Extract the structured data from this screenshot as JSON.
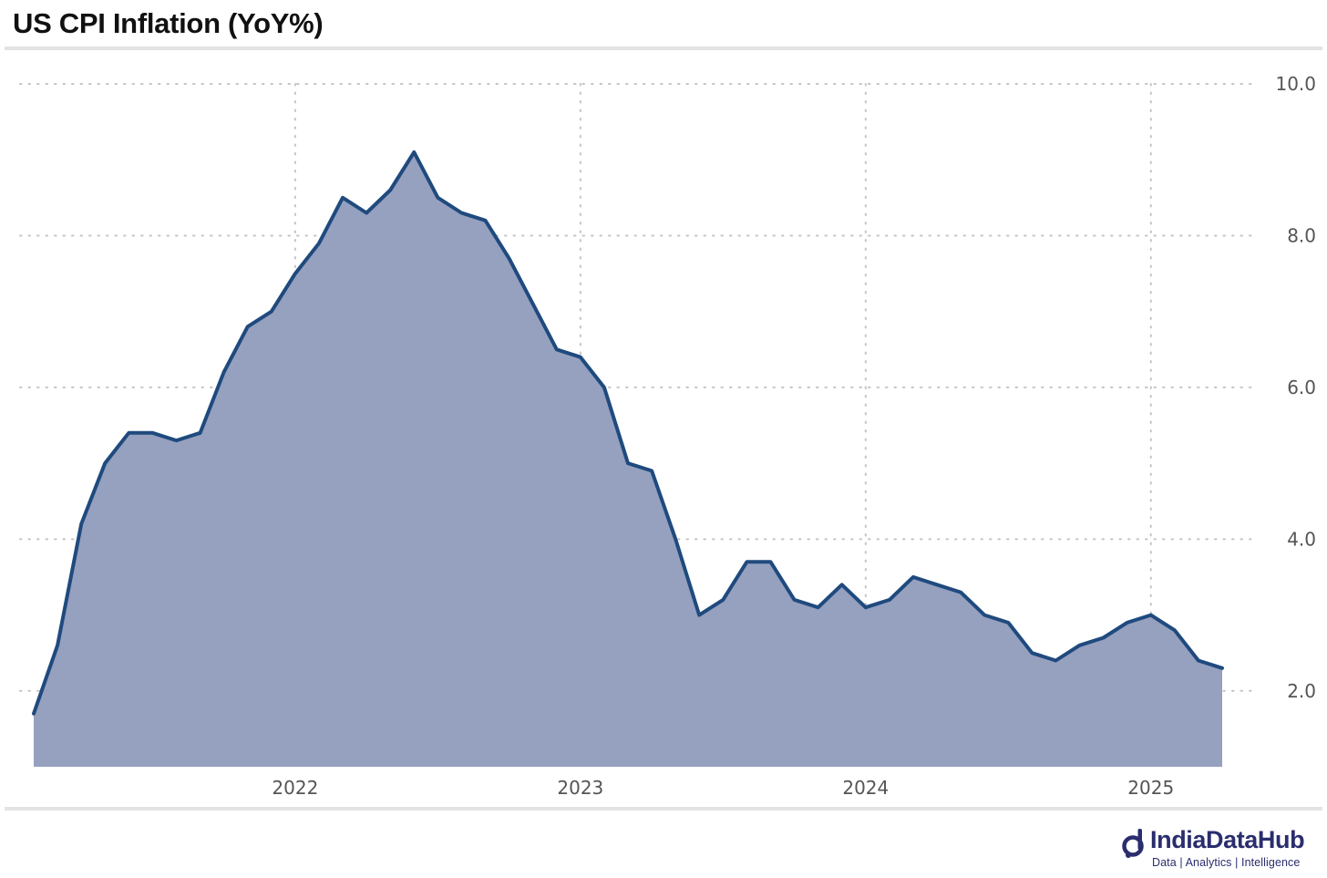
{
  "header": {
    "title": "US CPI Inflation (YoY%)"
  },
  "brand": {
    "name": "IndiaDataHub",
    "tagline": "Data | Analytics | Intelligence",
    "color": "#2a2d6e"
  },
  "chart_data": {
    "type": "area",
    "title": "US CPI Inflation (YoY%)",
    "xlabel": "",
    "ylabel": "",
    "x_start": "2021-02",
    "x_ticks": [
      "2022",
      "2023",
      "2024",
      "2025"
    ],
    "x_tick_months": [
      "2022-01",
      "2023-01",
      "2024-01",
      "2025-01"
    ],
    "y_ticks": [
      "2.0",
      "4.0",
      "6.0",
      "8.0",
      "10.0"
    ],
    "ylim": [
      1.0,
      10.0
    ],
    "grid": true,
    "y_axis_side": "right",
    "colors": {
      "line": "#1f4a7e",
      "fill": "#96a0bf"
    },
    "series": [
      {
        "x": [
          "2021-02",
          "2021-03",
          "2021-04",
          "2021-05",
          "2021-06",
          "2021-07",
          "2021-08",
          "2021-09",
          "2021-10",
          "2021-11",
          "2021-12",
          "2022-01",
          "2022-02",
          "2022-03",
          "2022-04",
          "2022-05",
          "2022-06",
          "2022-07",
          "2022-08",
          "2022-09",
          "2022-10",
          "2022-11",
          "2022-12",
          "2023-01",
          "2023-02",
          "2023-03",
          "2023-04",
          "2023-05",
          "2023-06",
          "2023-07",
          "2023-08",
          "2023-09",
          "2023-10",
          "2023-11",
          "2023-12",
          "2024-01",
          "2024-02",
          "2024-03",
          "2024-04",
          "2024-05",
          "2024-06",
          "2024-07",
          "2024-08",
          "2024-09",
          "2024-10",
          "2024-11",
          "2024-12",
          "2025-01",
          "2025-02",
          "2025-03",
          "2025-04"
        ],
        "values": [
          1.7,
          2.6,
          4.2,
          5.0,
          5.4,
          5.4,
          5.3,
          5.4,
          6.2,
          6.8,
          7.0,
          7.5,
          7.9,
          8.5,
          8.3,
          8.6,
          9.1,
          8.5,
          8.3,
          8.2,
          7.7,
          7.1,
          6.5,
          6.4,
          6.0,
          5.0,
          4.9,
          4.0,
          3.0,
          3.2,
          3.7,
          3.7,
          3.2,
          3.1,
          3.4,
          3.1,
          3.2,
          3.5,
          3.4,
          3.3,
          3.0,
          2.9,
          2.5,
          2.4,
          2.6,
          2.7,
          2.9,
          3.0,
          2.8,
          2.4,
          2.3
        ]
      }
    ]
  }
}
